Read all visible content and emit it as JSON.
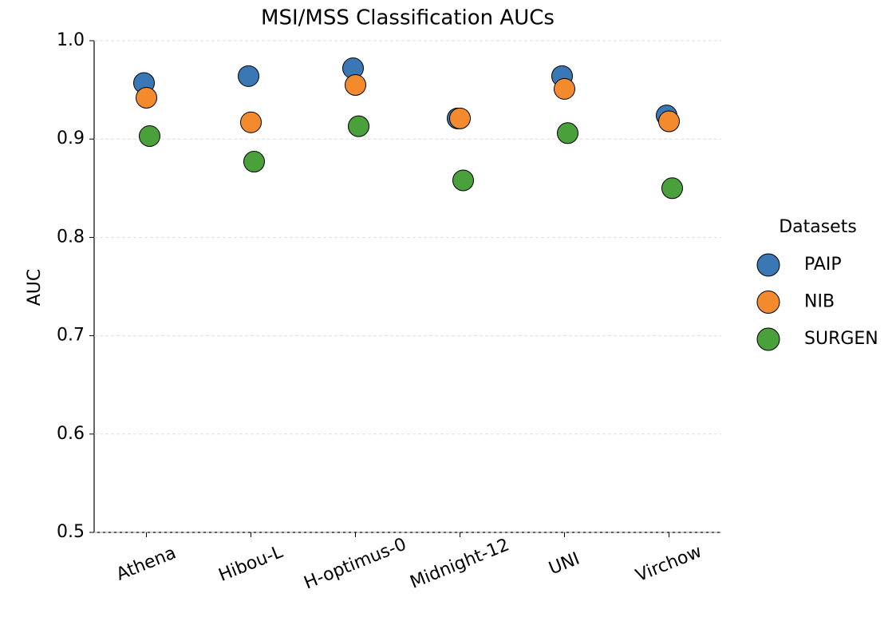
{
  "chart_data": {
    "type": "strip",
    "title": "MSI/MSS Classification AUCs",
    "y_label": "AUC",
    "categories": [
      "Athena",
      "Hibou-L",
      "H-optimus-0",
      "Midnight-12",
      "UNI",
      "Virchow"
    ],
    "series": [
      {
        "name": "PAIP",
        "color": "#3a77b5",
        "values": [
          0.957,
          0.964,
          0.972,
          0.921,
          0.964,
          0.924
        ]
      },
      {
        "name": "NIB",
        "color": "#f48a2e",
        "values": [
          0.942,
          0.917,
          0.955,
          0.921,
          0.951,
          0.918
        ]
      },
      {
        "name": "SURGEN",
        "color": "#4aa03b",
        "values": [
          0.903,
          0.877,
          0.913,
          0.858,
          0.906,
          0.85
        ]
      }
    ],
    "ylim": [
      0.5,
      1.0
    ],
    "yticks": [
      0.5,
      0.6,
      0.7,
      0.8,
      0.9,
      {
        "value": 1.0,
        "label": "1.0"
      }
    ],
    "grid": true,
    "legend_title": "Datasets",
    "legend_position": "right"
  }
}
